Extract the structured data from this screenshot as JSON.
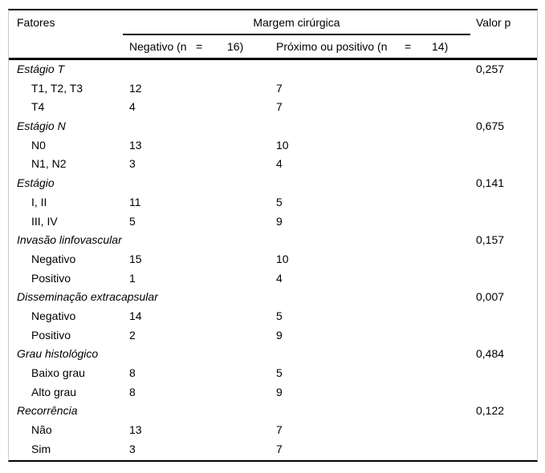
{
  "table": {
    "header": {
      "col_factors": "Fatores",
      "col_margin_group": "Margem cirúrgica",
      "col_pvalue": "Valor p",
      "sub_negative": {
        "prefix": "Negativo (n",
        "eq": "=",
        "count": "16)"
      },
      "sub_positive": {
        "prefix": "Próximo ou positivo (n",
        "eq": "=",
        "count": "14)"
      }
    },
    "groups": [
      {
        "label": "Estágio T",
        "p": "0,257",
        "rows": [
          {
            "label": "T1, T2, T3",
            "neg": "12",
            "pos": "7"
          },
          {
            "label": "T4",
            "neg": "4",
            "pos": "7"
          }
        ]
      },
      {
        "label": "Estágio N",
        "p": "0,675",
        "rows": [
          {
            "label": "N0",
            "neg": "13",
            "pos": "10"
          },
          {
            "label": "N1, N2",
            "neg": "3",
            "pos": "4"
          }
        ]
      },
      {
        "label": "Estágio",
        "p": "0,141",
        "rows": [
          {
            "label": "I, II",
            "neg": "11",
            "pos": "5"
          },
          {
            "label": "III, IV",
            "neg": "5",
            "pos": "9"
          }
        ]
      },
      {
        "label": "Invasão linfovascular",
        "p": "0,157",
        "rows": [
          {
            "label": "Negativo",
            "neg": "15",
            "pos": "10"
          },
          {
            "label": "Positivo",
            "neg": "1",
            "pos": "4"
          }
        ]
      },
      {
        "label": "Disseminação extracapsular",
        "p": "0,007",
        "rows": [
          {
            "label": "Negativo",
            "neg": "14",
            "pos": "5"
          },
          {
            "label": "Positivo",
            "neg": "2",
            "pos": "9"
          }
        ]
      },
      {
        "label": "Grau histológico",
        "p": "0,484",
        "rows": [
          {
            "label": "Baixo grau",
            "neg": "8",
            "pos": "5"
          },
          {
            "label": "Alto grau",
            "neg": "8",
            "pos": "9"
          }
        ]
      },
      {
        "label": "Recorrência",
        "p": "0,122",
        "rows": [
          {
            "label": "Não",
            "neg": "13",
            "pos": "7"
          },
          {
            "label": "Sim",
            "neg": "3",
            "pos": "7"
          }
        ]
      }
    ]
  },
  "colors": {
    "text": "#000000",
    "rule": "#000000",
    "side_border": "#c9c9c9",
    "background": "#ffffff"
  }
}
